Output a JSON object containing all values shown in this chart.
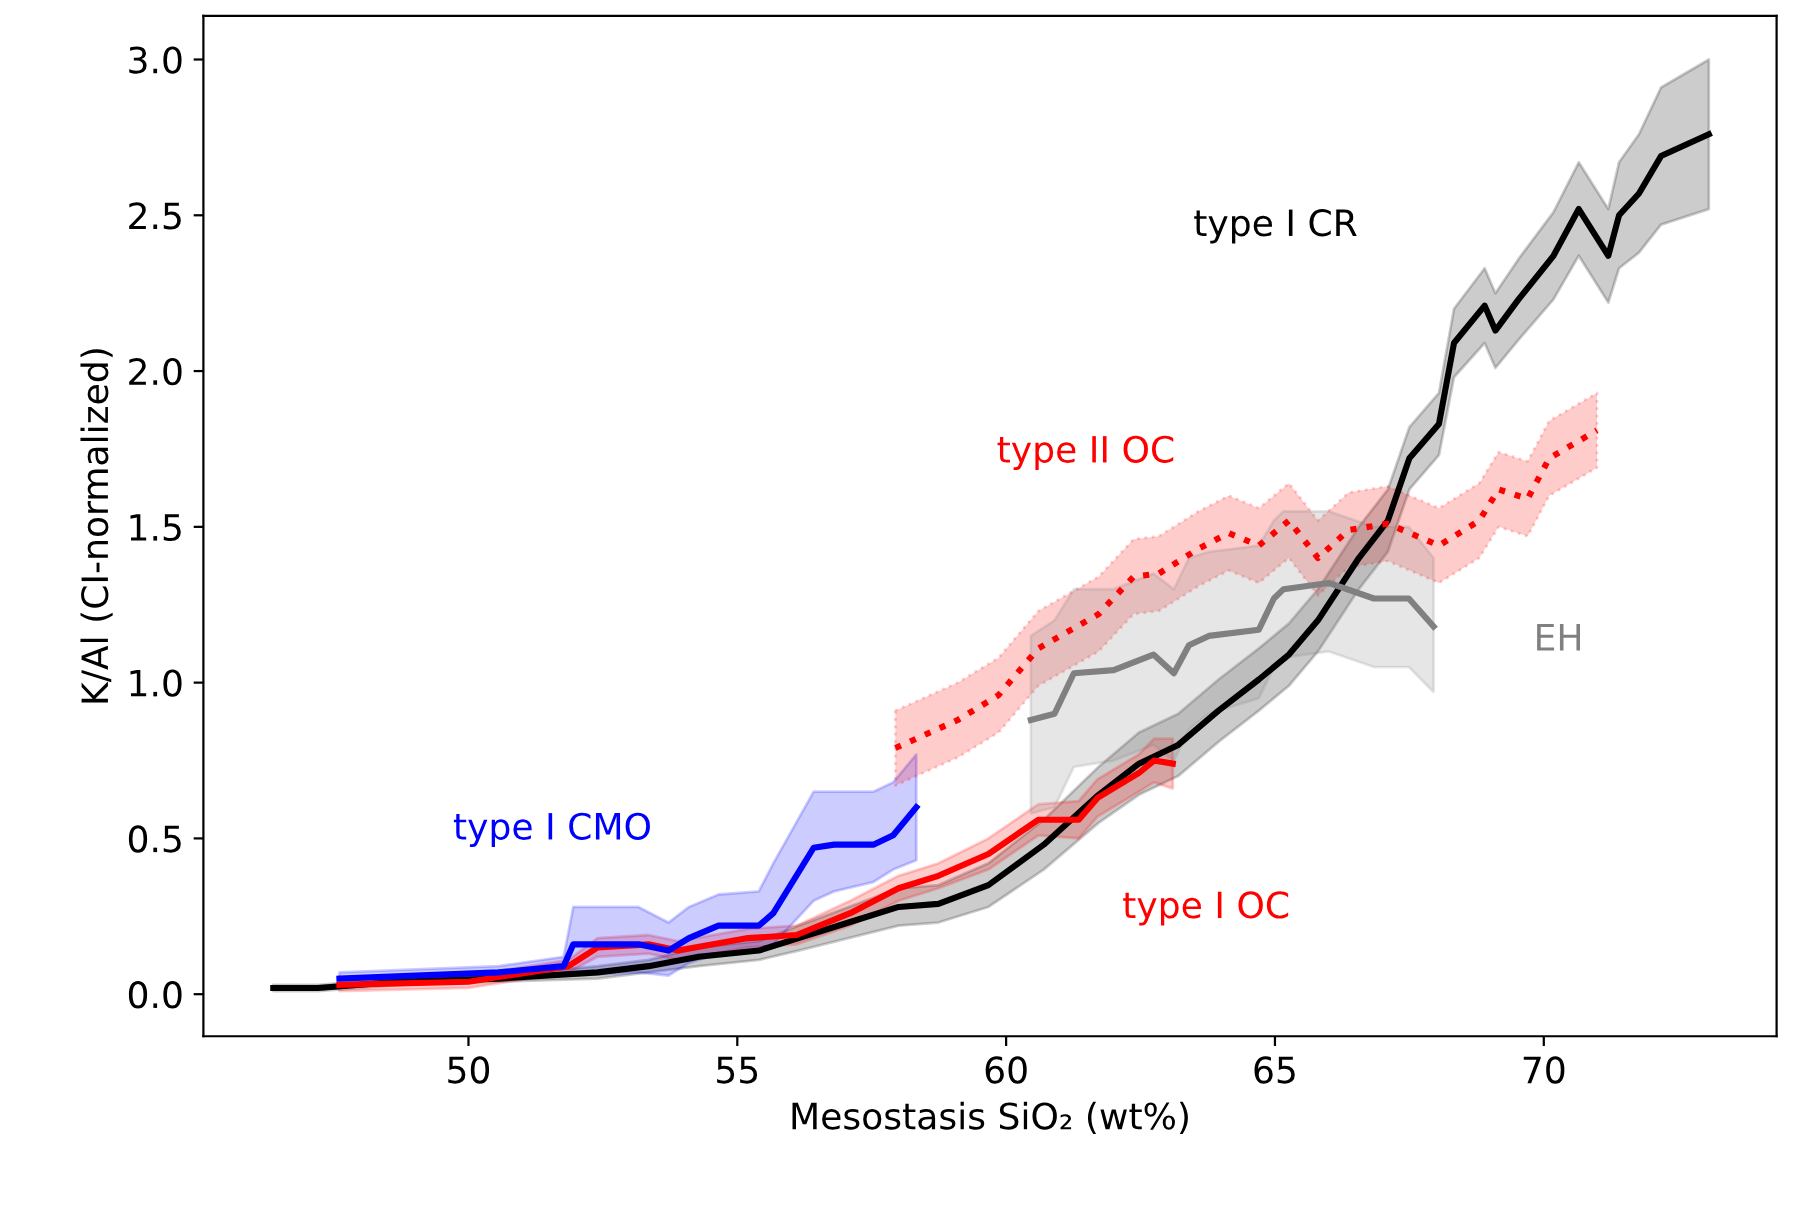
{
  "chart_data": {
    "type": "line",
    "xlabel": "Mesostasis SiO₂ (wt%)",
    "ylabel": "K/Al (CI-normalized)",
    "xlim": [
      45.07,
      74.33
    ],
    "ylim": [
      -0.135,
      3.14
    ],
    "xticks": [
      50,
      55,
      60,
      65,
      70
    ],
    "yticks": [
      {
        "value": 0,
        "label": "0.0"
      },
      {
        "value": 0.5,
        "label": "0.5"
      },
      {
        "value": 1,
        "label": "1.0"
      },
      {
        "value": 1.5,
        "label": "1.5"
      },
      {
        "value": 2,
        "label": "2.0"
      },
      {
        "value": 2.5,
        "label": "2.5"
      },
      {
        "value": 3,
        "label": "3.0"
      }
    ],
    "grid": false,
    "legend": false,
    "marker": "none",
    "series": [
      {
        "name": "type I CR",
        "color": "#000000",
        "line_style": "solid",
        "x": [
          46.37,
          47.2,
          48.7,
          50.56,
          52.4,
          53.35,
          54.28,
          55.4,
          56.14,
          57.07,
          58.0,
          58.74,
          59.67,
          60.7,
          61.72,
          62.47,
          63.2,
          63.95,
          64.7,
          65.26,
          65.8,
          66.56,
          67.1,
          67.5,
          68.05,
          68.33,
          68.9,
          69.1,
          69.53,
          70.18,
          70.65,
          71.2,
          71.4,
          71.77,
          72.18,
          73.07
        ],
        "values": [
          0.02,
          0.02,
          0.04,
          0.05,
          0.07,
          0.09,
          0.12,
          0.14,
          0.18,
          0.23,
          0.28,
          0.29,
          0.35,
          0.48,
          0.64,
          0.74,
          0.8,
          0.91,
          1.01,
          1.09,
          1.2,
          1.4,
          1.52,
          1.72,
          1.83,
          2.09,
          2.21,
          2.13,
          2.23,
          2.37,
          2.52,
          2.37,
          2.5,
          2.57,
          2.69,
          2.76
        ],
        "lower": [
          0.01,
          0.01,
          0.03,
          0.04,
          0.05,
          0.07,
          0.09,
          0.11,
          0.14,
          0.18,
          0.22,
          0.23,
          0.28,
          0.4,
          0.55,
          0.64,
          0.7,
          0.81,
          0.91,
          0.99,
          1.1,
          1.3,
          1.42,
          1.62,
          1.73,
          1.98,
          2.09,
          2.01,
          2.1,
          2.23,
          2.37,
          2.22,
          2.33,
          2.38,
          2.47,
          2.52
        ],
        "upper": [
          0.03,
          0.03,
          0.05,
          0.06,
          0.09,
          0.11,
          0.15,
          0.17,
          0.22,
          0.28,
          0.34,
          0.35,
          0.42,
          0.56,
          0.73,
          0.84,
          0.9,
          1.01,
          1.11,
          1.19,
          1.3,
          1.5,
          1.62,
          1.82,
          1.93,
          2.2,
          2.33,
          2.25,
          2.36,
          2.51,
          2.67,
          2.52,
          2.67,
          2.76,
          2.91,
          3.0
        ]
      },
      {
        "name": "type I OC",
        "color": "#ff0000",
        "line_style": "solid",
        "x": [
          47.6,
          50.0,
          51.86,
          52.4,
          53.35,
          53.9,
          55.2,
          56.1,
          57.1,
          58.0,
          58.74,
          59.67,
          60.6,
          61.35,
          61.7,
          62.47,
          62.75,
          63.1
        ],
        "values": [
          0.03,
          0.04,
          0.09,
          0.15,
          0.16,
          0.14,
          0.18,
          0.19,
          0.26,
          0.34,
          0.38,
          0.45,
          0.56,
          0.56,
          0.63,
          0.71,
          0.75,
          0.74
        ],
        "lower": [
          0.01,
          0.02,
          0.07,
          0.12,
          0.13,
          0.11,
          0.15,
          0.16,
          0.22,
          0.3,
          0.34,
          0.4,
          0.51,
          0.5,
          0.57,
          0.65,
          0.68,
          0.66
        ],
        "upper": [
          0.05,
          0.06,
          0.11,
          0.18,
          0.19,
          0.17,
          0.21,
          0.22,
          0.3,
          0.38,
          0.42,
          0.5,
          0.61,
          0.62,
          0.69,
          0.77,
          0.82,
          0.82
        ]
      },
      {
        "name": "type I CMO",
        "color": "#0000ff",
        "line_style": "solid",
        "x": [
          47.6,
          50.56,
          51.77,
          51.95,
          53.16,
          53.72,
          54.1,
          54.65,
          55.4,
          55.67,
          56.42,
          56.8,
          57.53,
          57.9,
          58.33
        ],
        "values": [
          0.05,
          0.07,
          0.09,
          0.16,
          0.16,
          0.14,
          0.18,
          0.22,
          0.22,
          0.26,
          0.47,
          0.48,
          0.48,
          0.51,
          0.6
        ],
        "lower": [
          0.03,
          0.05,
          0.06,
          0.06,
          0.07,
          0.06,
          0.1,
          0.13,
          0.14,
          0.16,
          0.3,
          0.33,
          0.36,
          0.4,
          0.43
        ],
        "upper": [
          0.07,
          0.09,
          0.12,
          0.28,
          0.28,
          0.23,
          0.28,
          0.32,
          0.33,
          0.42,
          0.65,
          0.65,
          0.65,
          0.68,
          0.77
        ]
      },
      {
        "name": "type II OC",
        "color": "#ff0000",
        "line_style": "dotted",
        "x": [
          57.94,
          59.1,
          59.86,
          60.6,
          61.72,
          62.37,
          62.84,
          63.58,
          64.14,
          64.7,
          65.26,
          65.8,
          66.37,
          67.1,
          68.05,
          68.8,
          69.16,
          69.7,
          70.1,
          70.99
        ],
        "values": [
          0.79,
          0.88,
          0.96,
          1.11,
          1.22,
          1.34,
          1.35,
          1.43,
          1.48,
          1.44,
          1.52,
          1.4,
          1.49,
          1.51,
          1.44,
          1.52,
          1.62,
          1.59,
          1.72,
          1.81
        ],
        "lower": [
          0.67,
          0.76,
          0.84,
          0.99,
          1.1,
          1.22,
          1.23,
          1.31,
          1.36,
          1.32,
          1.4,
          1.28,
          1.37,
          1.39,
          1.32,
          1.4,
          1.5,
          1.47,
          1.6,
          1.69
        ],
        "upper": [
          0.91,
          1.0,
          1.08,
          1.23,
          1.34,
          1.46,
          1.47,
          1.55,
          1.6,
          1.56,
          1.64,
          1.52,
          1.61,
          1.63,
          1.56,
          1.64,
          1.74,
          1.71,
          1.84,
          1.93
        ]
      },
      {
        "name": "EH",
        "color": "#808080",
        "line_style": "solid",
        "x": [
          60.46,
          60.9,
          61.26,
          62.0,
          62.74,
          63.12,
          63.4,
          63.77,
          64.7,
          64.98,
          65.16,
          66.0,
          66.84,
          67.49,
          67.95
        ],
        "values": [
          0.88,
          0.9,
          1.03,
          1.04,
          1.09,
          1.03,
          1.12,
          1.15,
          1.17,
          1.27,
          1.3,
          1.32,
          1.27,
          1.27,
          1.18
        ],
        "lower": [
          0.58,
          0.6,
          0.73,
          0.75,
          0.8,
          0.75,
          0.85,
          0.9,
          0.95,
          1.05,
          1.08,
          1.1,
          1.05,
          1.05,
          0.97
        ],
        "upper": [
          1.15,
          1.2,
          1.3,
          1.3,
          1.35,
          1.3,
          1.4,
          1.42,
          1.44,
          1.52,
          1.55,
          1.55,
          1.5,
          1.5,
          1.4
        ]
      }
    ]
  }
}
